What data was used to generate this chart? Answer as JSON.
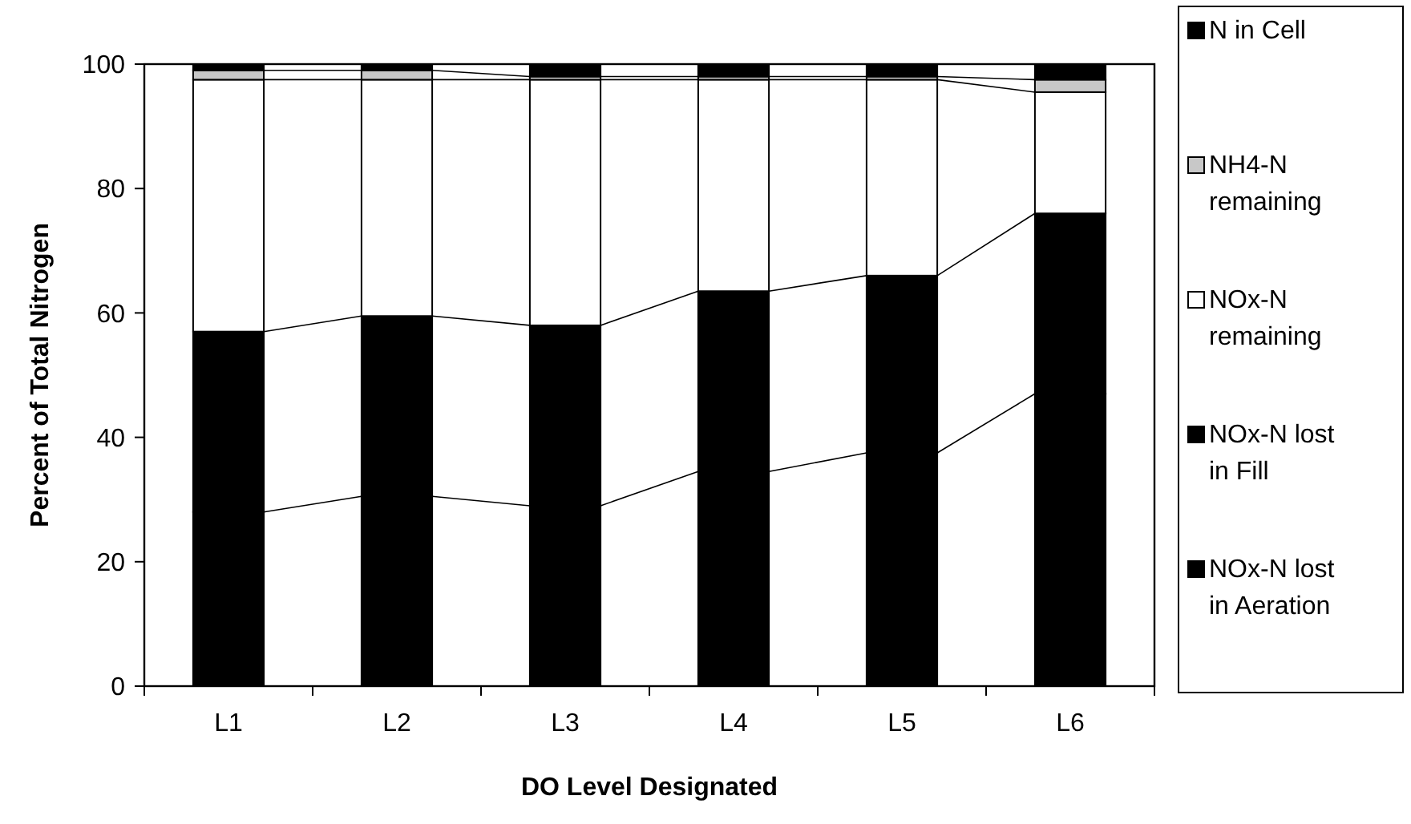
{
  "chart_data": {
    "type": "bar",
    "stacked": true,
    "xlabel": "DO Level Designated",
    "ylabel": "Percent of Total Nitrogen",
    "categories": [
      "L1",
      "L2",
      "L3",
      "L4",
      "L5",
      "L6"
    ],
    "series": [
      {
        "name": "NOx-N lost in Aeration",
        "color": "#000000",
        "values": [
          28,
          30.5,
          29,
          34.5,
          37.5,
          47
        ]
      },
      {
        "name": "NOx-N lost in Fill",
        "color": "#000000",
        "values": [
          29,
          29,
          29,
          29,
          28.5,
          29
        ]
      },
      {
        "name": "NOx-N remaining",
        "color": "#ffffff",
        "values": [
          40.5,
          38,
          39.5,
          34,
          31.5,
          19.5
        ]
      },
      {
        "name": "NH4-N remaining",
        "color": "#c8c8c8",
        "values": [
          1.5,
          1.5,
          0.5,
          0.5,
          0.5,
          2
        ]
      },
      {
        "name": "N in Cell",
        "color": "#000000",
        "values": [
          1,
          1,
          2,
          2,
          2,
          2.5
        ]
      }
    ],
    "ylim": [
      0,
      100
    ],
    "yticks": [
      0,
      20,
      40,
      60,
      80,
      100
    ],
    "grid": false,
    "legend": "right"
  }
}
